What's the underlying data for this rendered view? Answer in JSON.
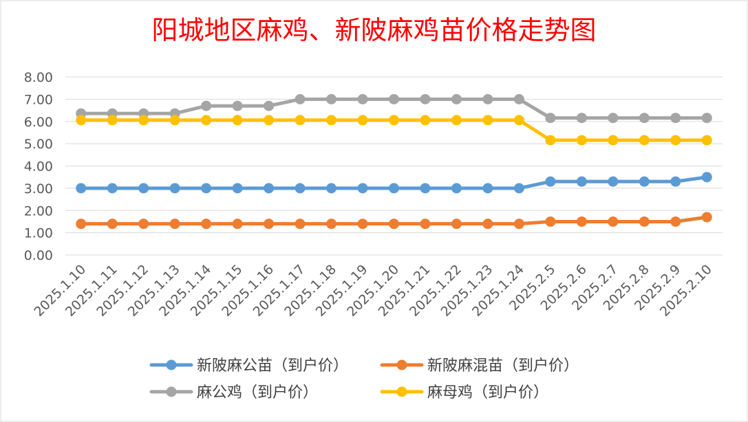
{
  "chart_data": {
    "type": "line",
    "title": "阳城地区麻鸡、新陂麻鸡苗价格走势图",
    "xlabel": "",
    "ylabel": "",
    "ylim": [
      0,
      8
    ],
    "yticks": [
      "0.00",
      "1.00",
      "2.00",
      "3.00",
      "4.00",
      "5.00",
      "6.00",
      "7.00",
      "8.00"
    ],
    "grid": true,
    "legend_position": "bottom",
    "categories": [
      "2025.1.10",
      "2025.1.11",
      "2025.1.12",
      "2025.1.13",
      "2025.1.14",
      "2025.1.15",
      "2025.1.16",
      "2025.1.17",
      "2025.1.18",
      "2025.1.19",
      "2025.1.20",
      "2025.1.21",
      "2025.1.22",
      "2025.1.23",
      "2025.1.24",
      "2025.2.5",
      "2025.2.6",
      "2025.2.7",
      "2025.2.8",
      "2025.2.9",
      "2025.2.10"
    ],
    "series": [
      {
        "name": "新陂麻公苗（到户价）",
        "color": "#5b9bd5",
        "values": [
          3.0,
          3.0,
          3.0,
          3.0,
          3.0,
          3.0,
          3.0,
          3.0,
          3.0,
          3.0,
          3.0,
          3.0,
          3.0,
          3.0,
          3.0,
          3.3,
          3.3,
          3.3,
          3.3,
          3.3,
          3.5
        ]
      },
      {
        "name": "新陂麻混苗（到户价）",
        "color": "#ed7d31",
        "values": [
          1.4,
          1.4,
          1.4,
          1.4,
          1.4,
          1.4,
          1.4,
          1.4,
          1.4,
          1.4,
          1.4,
          1.4,
          1.4,
          1.4,
          1.4,
          1.5,
          1.5,
          1.5,
          1.5,
          1.5,
          1.7
        ]
      },
      {
        "name": "麻公鸡（到户价）",
        "color": "#a5a5a5",
        "values": [
          6.36,
          6.36,
          6.36,
          6.36,
          6.7,
          6.7,
          6.7,
          7.0,
          7.0,
          7.0,
          7.0,
          7.0,
          7.0,
          7.0,
          7.0,
          6.16,
          6.16,
          6.16,
          6.16,
          6.16,
          6.16
        ]
      },
      {
        "name": "麻母鸡（到户价）",
        "color": "#ffc000",
        "values": [
          6.06,
          6.06,
          6.06,
          6.06,
          6.06,
          6.06,
          6.06,
          6.06,
          6.06,
          6.06,
          6.06,
          6.06,
          6.06,
          6.06,
          6.06,
          5.16,
          5.16,
          5.16,
          5.16,
          5.16,
          5.16
        ]
      }
    ]
  }
}
